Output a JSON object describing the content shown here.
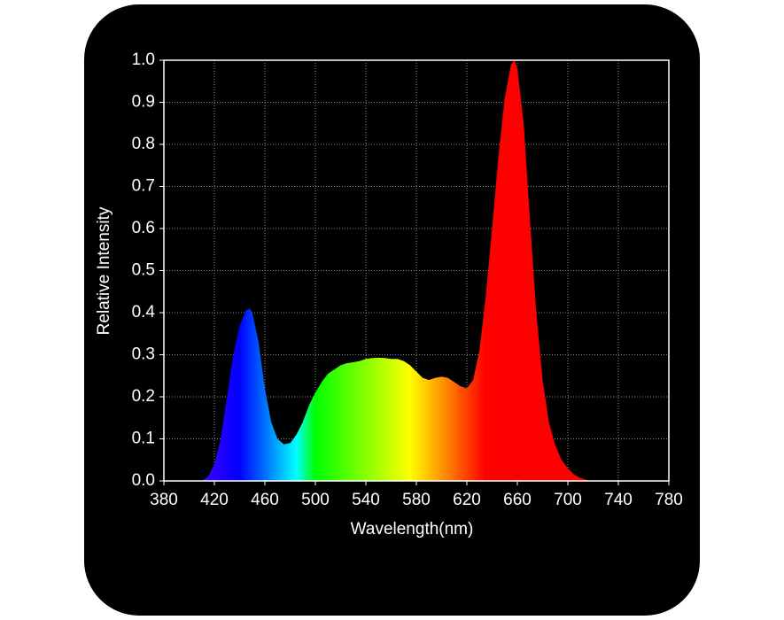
{
  "chart_data": {
    "type": "area",
    "x_label": "Wavelength(nm)",
    "y_label": "Relative Intensity",
    "x": [
      410,
      415,
      420,
      425,
      430,
      435,
      440,
      445,
      448,
      450,
      455,
      460,
      465,
      470,
      475,
      480,
      485,
      490,
      495,
      500,
      505,
      510,
      515,
      520,
      525,
      530,
      535,
      540,
      545,
      550,
      555,
      560,
      565,
      570,
      575,
      580,
      585,
      590,
      595,
      600,
      605,
      610,
      615,
      620,
      625,
      630,
      635,
      640,
      645,
      650,
      655,
      658,
      660,
      665,
      670,
      675,
      680,
      685,
      690,
      695,
      700,
      705,
      710,
      715,
      720
    ],
    "values": [
      0,
      0.01,
      0.04,
      0.1,
      0.2,
      0.3,
      0.37,
      0.405,
      0.41,
      0.4,
      0.33,
      0.22,
      0.14,
      0.1,
      0.087,
      0.09,
      0.11,
      0.14,
      0.18,
      0.21,
      0.235,
      0.255,
      0.265,
      0.275,
      0.28,
      0.282,
      0.285,
      0.29,
      0.292,
      0.293,
      0.292,
      0.29,
      0.29,
      0.285,
      0.275,
      0.26,
      0.245,
      0.24,
      0.245,
      0.248,
      0.245,
      0.235,
      0.225,
      0.22,
      0.24,
      0.31,
      0.44,
      0.6,
      0.77,
      0.91,
      0.99,
      1.0,
      0.98,
      0.85,
      0.62,
      0.4,
      0.24,
      0.14,
      0.085,
      0.05,
      0.03,
      0.015,
      0.007,
      0.002,
      0
    ],
    "xlim": [
      380,
      780
    ],
    "xticks": [
      380,
      420,
      460,
      500,
      540,
      580,
      620,
      660,
      700,
      740,
      780
    ],
    "ylim": [
      0,
      1
    ],
    "yticks": [
      {
        "value": 0,
        "label": "0.0"
      },
      0.1,
      0.2,
      0.3,
      0.4,
      0.5,
      0.6,
      0.7,
      0.8,
      0.9,
      {
        "value": 1,
        "label": "1.0"
      }
    ],
    "grid": true
  }
}
